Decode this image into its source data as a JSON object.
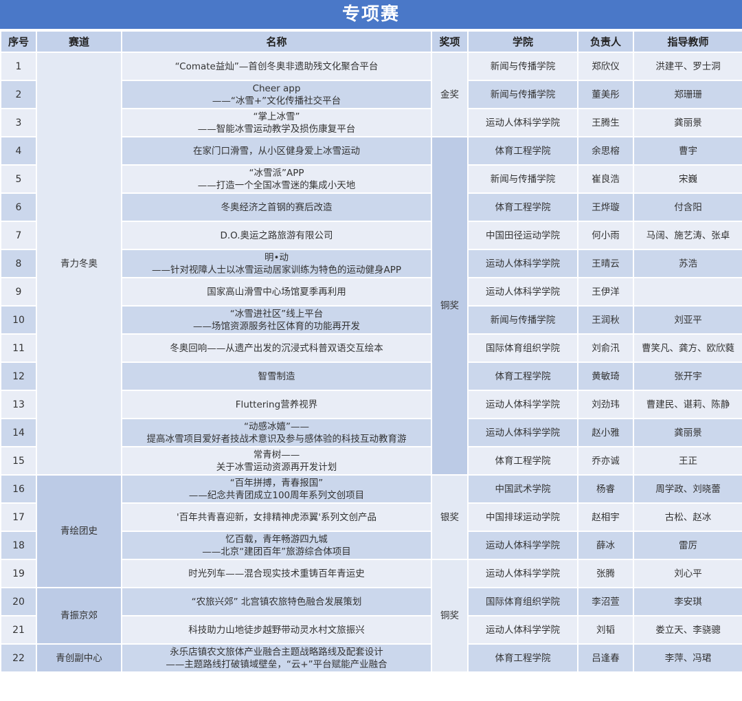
{
  "title": "专项赛",
  "headers": [
    "序号",
    "赛道",
    "名称",
    "奖项",
    "学院",
    "负责人",
    "指导教师"
  ],
  "tracks": [
    {
      "label": "青力冬奥",
      "rows": 15,
      "shade": "light"
    },
    {
      "label": "青绘团史",
      "rows": 4,
      "shade": "dark"
    },
    {
      "label": "青振京郊",
      "rows": 2,
      "shade": "dark"
    },
    {
      "label": "青创副中心",
      "rows": 1,
      "shade": "dark"
    }
  ],
  "awards": [
    {
      "label": "金奖",
      "rows": 3,
      "shade": "light"
    },
    {
      "label": "铜奖",
      "rows": 12,
      "shade": "dark"
    },
    {
      "label": "银奖",
      "rows": 3,
      "shade": "light"
    },
    {
      "label": "铜奖",
      "rows": 4,
      "shade": "light"
    }
  ],
  "rows": [
    {
      "seq": "1",
      "name": [
        "“Comate益灿”—首创冬奥非遗助残文化聚合平台"
      ],
      "college": "新闻与传播学院",
      "leader": "郑欣仪",
      "teacher": "洪建平、罗士洞"
    },
    {
      "seq": "2",
      "name": [
        "Cheer app",
        "——“冰雪+”文化传播社交平台"
      ],
      "college": "新闻与传播学院",
      "leader": "董美彤",
      "teacher": "郑珊珊"
    },
    {
      "seq": "3",
      "name": [
        "“掌上冰雪”",
        "——智能冰雪运动教学及损伤康复平台"
      ],
      "college": "运动人体科学学院",
      "leader": "王腾生",
      "teacher": "龚丽景"
    },
    {
      "seq": "4",
      "name": [
        "在家门口滑雪，从小区健身爱上冰雪运动"
      ],
      "college": "体育工程学院",
      "leader": "余思榕",
      "teacher": "曹宇"
    },
    {
      "seq": "5",
      "name": [
        "“冰雪派”APP",
        "——打造一个全国冰雪迷的集成小天地"
      ],
      "college": "新闻与传播学院",
      "leader": "崔良浩",
      "teacher": "宋巍"
    },
    {
      "seq": "6",
      "name": [
        "冬奥经济之首钢的赛后改造"
      ],
      "college": "体育工程学院",
      "leader": "王烨璇",
      "teacher": "付含阳"
    },
    {
      "seq": "7",
      "name": [
        "D.O.奥运之路旅游有限公司"
      ],
      "college": "中国田径运动学院",
      "leader": "何小雨",
      "teacher": "马阔、施艺涛、张卓"
    },
    {
      "seq": "8",
      "name": [
        "明•动",
        "——针对视障人士以冰雪运动居家训练为特色的运动健身APP"
      ],
      "college": "运动人体科学学院",
      "leader": "王晴云",
      "teacher": "苏浩"
    },
    {
      "seq": "9",
      "name": [
        "国家高山滑雪中心场馆夏季再利用"
      ],
      "college": "运动人体科学学院",
      "leader": "王伊洋",
      "teacher": ""
    },
    {
      "seq": "10",
      "name": [
        "“冰雪进社区”线上平台",
        "——场馆资源服务社区体育的功能再开发"
      ],
      "college": "新闻与传播学院",
      "leader": "王润秋",
      "teacher": "刘亚平"
    },
    {
      "seq": "11",
      "name": [
        "冬奥回响——从遗产出发的沉浸式科普双语交互绘本"
      ],
      "college": "国际体育组织学院",
      "leader": "刘俞汛",
      "teacher": "曹笑凡、龚方、欧欣蕤"
    },
    {
      "seq": "12",
      "name": [
        "智雪制造"
      ],
      "college": "体育工程学院",
      "leader": "黄敏琦",
      "teacher": "张开宇"
    },
    {
      "seq": "13",
      "name": [
        "Fluttering营养视界"
      ],
      "college": "运动人体科学学院",
      "leader": "刘劲玮",
      "teacher": "曹建民、谌莉、陈静"
    },
    {
      "seq": "14",
      "name": [
        "“动感冰嬉”——",
        "提高冰雪项目爱好者技战术意识及参与感体验的科技互动教育游"
      ],
      "college": "运动人体科学学院",
      "leader": "赵小雅",
      "teacher": "龚丽景"
    },
    {
      "seq": "15",
      "name": [
        "常青树——",
        "关于冰雪运动资源再开发计划"
      ],
      "college": "体育工程学院",
      "leader": "乔亦诚",
      "teacher": "王正"
    },
    {
      "seq": "16",
      "name": [
        "“百年拼搏，青春报国”",
        "——纪念共青团成立100周年系列文创项目"
      ],
      "college": "中国武术学院",
      "leader": "杨睿",
      "teacher": "周学政、刘晓蕾"
    },
    {
      "seq": "17",
      "name": [
        "'百年共青喜迎新，女排精神虎添翼'系列文创产品"
      ],
      "college": "中国排球运动学院",
      "leader": "赵相宇",
      "teacher": "古松、赵冰"
    },
    {
      "seq": "18",
      "name": [
        "忆百载，青年畅游四九城",
        "——北京“建团百年”旅游综合体项目"
      ],
      "college": "运动人体科学学院",
      "leader": "薛冰",
      "teacher": "雷厉"
    },
    {
      "seq": "19",
      "name": [
        "时光列车——混合现实技术重铸百年青运史"
      ],
      "college": "运动人体科学学院",
      "leader": "张腾",
      "teacher": "刘心平"
    },
    {
      "seq": "20",
      "name": [
        "“农旅兴郊” 北宫镇农旅特色融合发展策划"
      ],
      "college": "国际体育组织学院",
      "leader": "李沼萱",
      "teacher": "李安琪"
    },
    {
      "seq": "21",
      "name": [
        "科技助力山地徒步越野带动灵水村文旅振兴"
      ],
      "college": "运动人体科学学院",
      "leader": "刘韬",
      "teacher": "娄立天、李骁骢"
    },
    {
      "seq": "22",
      "name": [
        "永乐店镇农文旅体产业融合主题战略路线及配套设计",
        "——主题路线打破镇域壁垒，“云+”平台赋能产业融合"
      ],
      "college": "体育工程学院",
      "leader": "吕逢春",
      "teacher": "李萍、冯珺"
    }
  ]
}
